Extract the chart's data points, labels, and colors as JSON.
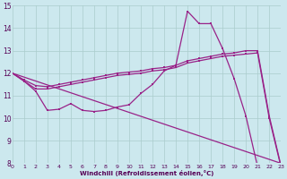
{
  "xlabel": "Windchill (Refroidissement éolien,°C)",
  "xlim": [
    0,
    23
  ],
  "ylim": [
    8,
    15
  ],
  "xticks": [
    0,
    1,
    2,
    3,
    4,
    5,
    6,
    7,
    8,
    9,
    10,
    11,
    12,
    13,
    14,
    15,
    16,
    17,
    18,
    19,
    20,
    21,
    22,
    23
  ],
  "yticks": [
    8,
    9,
    10,
    11,
    12,
    13,
    14,
    15
  ],
  "bg_color": "#cce8ee",
  "line_color": "#992288",
  "grid_color": "#aacccc",
  "line_bottom": {
    "x": [
      0,
      23
    ],
    "y": [
      12.0,
      8.0
    ]
  },
  "line_top": {
    "x": [
      0,
      1,
      2,
      3,
      4,
      5,
      6,
      7,
      8,
      9,
      10,
      11,
      12,
      13,
      14,
      15,
      16,
      17,
      18,
      19,
      20,
      21,
      22,
      23
    ],
    "y": [
      12.0,
      11.7,
      11.45,
      11.4,
      11.5,
      11.6,
      11.7,
      11.8,
      11.9,
      12.0,
      12.05,
      12.1,
      12.2,
      12.25,
      12.35,
      12.55,
      12.65,
      12.75,
      12.85,
      12.9,
      13.0,
      13.0,
      10.1,
      7.9
    ]
  },
  "line_mid": {
    "x": [
      0,
      1,
      2,
      3,
      4,
      5,
      6,
      7,
      8,
      9,
      10,
      11,
      12,
      13,
      14,
      15,
      16,
      17,
      18,
      19,
      20,
      21,
      22,
      23
    ],
    "y": [
      12.0,
      11.65,
      11.3,
      11.3,
      11.4,
      11.5,
      11.6,
      11.7,
      11.8,
      11.9,
      11.95,
      12.0,
      12.1,
      12.15,
      12.25,
      12.45,
      12.55,
      12.65,
      12.75,
      12.8,
      12.85,
      12.9,
      10.0,
      7.85
    ]
  },
  "line_spiky": {
    "x": [
      0,
      1,
      2,
      3,
      4,
      5,
      6,
      7,
      8,
      9,
      10,
      11,
      12,
      13,
      14,
      15,
      16,
      17,
      18,
      19,
      20,
      21
    ],
    "y": [
      12.0,
      11.65,
      11.2,
      10.35,
      10.4,
      10.65,
      10.35,
      10.3,
      10.35,
      10.5,
      10.6,
      11.1,
      11.5,
      12.1,
      12.35,
      14.75,
      14.2,
      14.2,
      13.1,
      11.75,
      10.1,
      7.85
    ]
  }
}
